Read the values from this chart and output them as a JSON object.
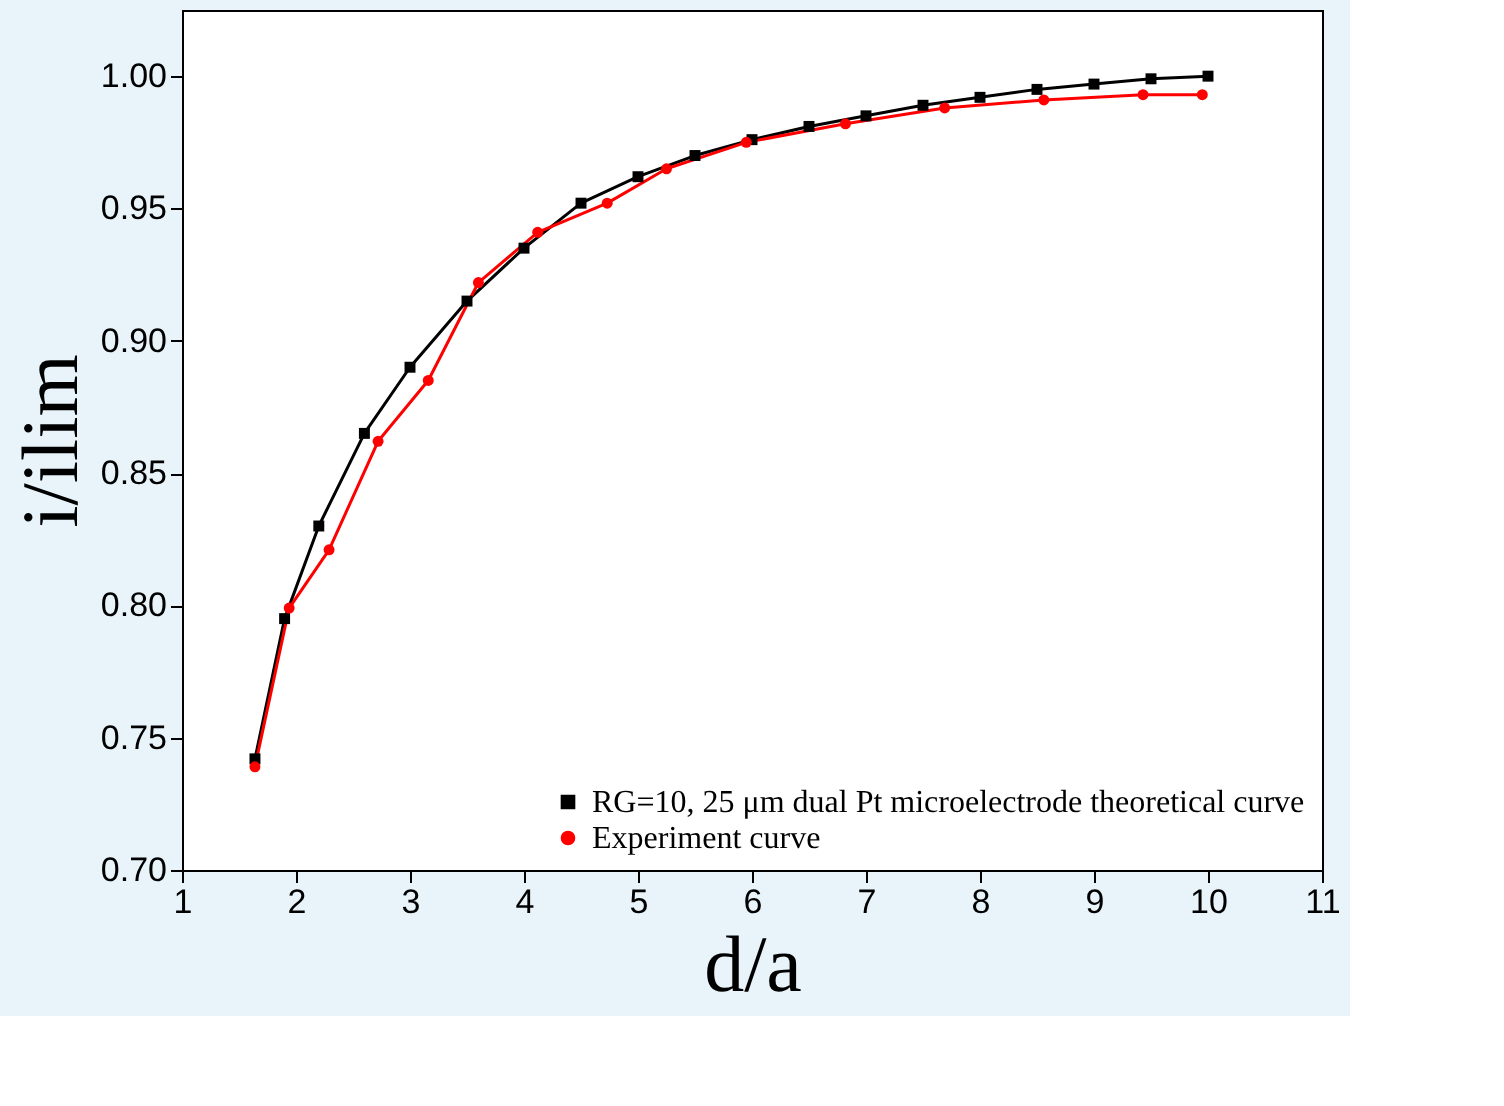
{
  "chart_data": {
    "type": "line",
    "xlabel": "d/a",
    "ylabel": "i/ilim",
    "xlim": [
      1,
      11
    ],
    "xticks": [
      1,
      2,
      3,
      4,
      5,
      6,
      7,
      8,
      9,
      10,
      11
    ],
    "ylim": [
      0.7,
      1.025
    ],
    "yticks": [
      {
        "value": 0.7,
        "label": "0.70"
      },
      0.75,
      {
        "value": 0.8,
        "label": "0.80"
      },
      0.85,
      {
        "value": 0.9,
        "label": "0.90"
      },
      0.95,
      {
        "value": 1.0,
        "label": "1.00"
      }
    ],
    "grid": false,
    "legend": "bottom right",
    "marker": "square",
    "line_style": "solid",
    "series": [
      {
        "name": "RG=10, 25 μm dual Pt microelectrode theoretical curve",
        "color": "#000000",
        "marker": "square",
        "x": [
          1.64,
          1.9,
          2.2,
          2.6,
          3.0,
          3.5,
          4.0,
          4.5,
          5.0,
          5.5,
          6.0,
          6.5,
          7.0,
          7.5,
          8.0,
          8.5,
          9.0,
          9.5,
          10.0
        ],
        "values": [
          0.742,
          0.795,
          0.83,
          0.865,
          0.89,
          0.915,
          0.935,
          0.952,
          0.962,
          0.97,
          0.976,
          0.981,
          0.985,
          0.989,
          0.992,
          0.995,
          0.997,
          0.999,
          1.0
        ]
      },
      {
        "name": "Experiment curve",
        "color": "#ff0000",
        "marker": "circle",
        "x": [
          1.64,
          1.94,
          2.29,
          2.72,
          3.16,
          3.6,
          4.12,
          4.73,
          5.25,
          5.95,
          6.82,
          7.69,
          8.56,
          9.43,
          9.95
        ],
        "values": [
          0.739,
          0.799,
          0.821,
          0.862,
          0.885,
          0.922,
          0.941,
          0.952,
          0.965,
          0.975,
          0.982,
          0.988,
          0.991,
          0.993,
          0.993
        ]
      }
    ]
  }
}
